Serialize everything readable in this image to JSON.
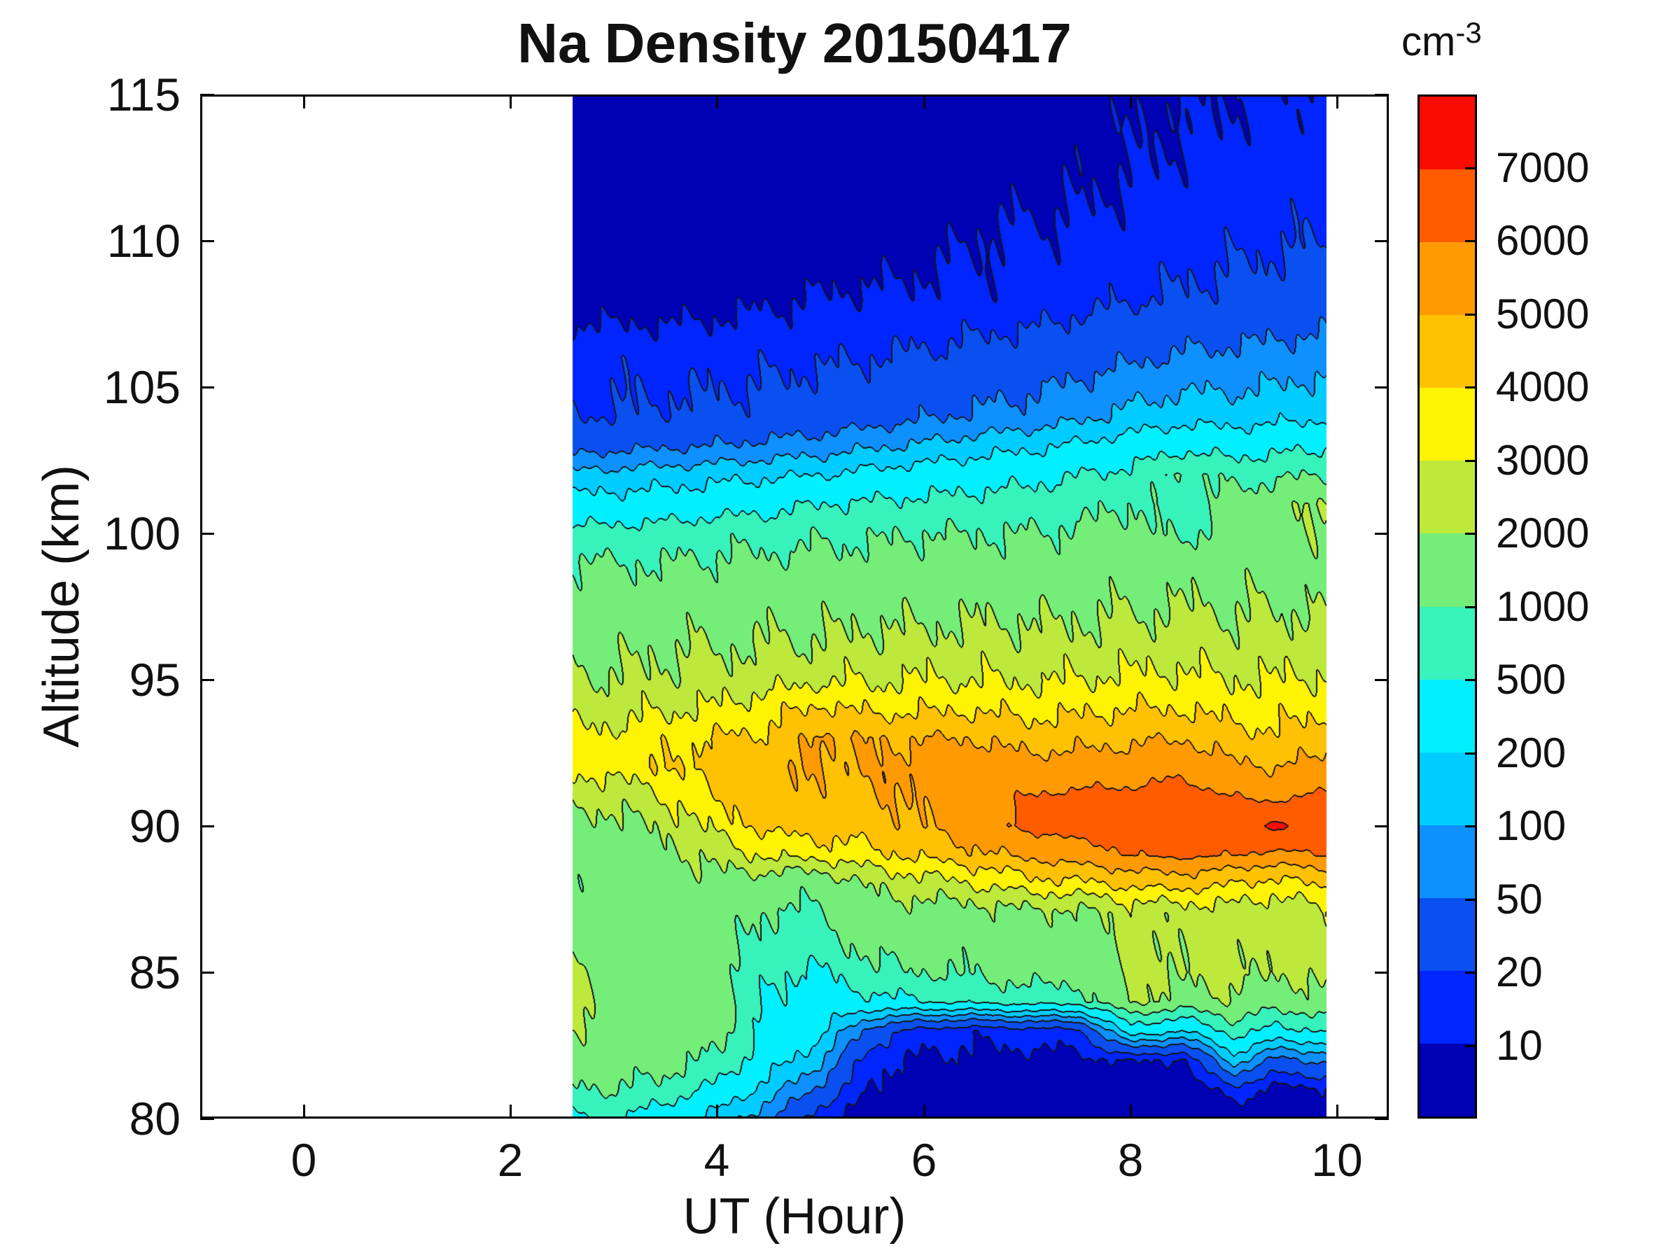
{
  "title": "Na Density 20150417",
  "xlabel": "UT (Hour)",
  "ylabel": "Altitude (km)",
  "axes": {
    "xlim": [
      -1,
      10.5
    ],
    "ylim": [
      80,
      115
    ],
    "xticks": [
      0,
      2,
      4,
      6,
      8,
      10
    ],
    "yticks": [
      80,
      85,
      90,
      95,
      100,
      105,
      110,
      115
    ]
  },
  "colorbar": {
    "unit_base": "cm",
    "unit_exp": "-3",
    "tick_labels": [
      10,
      20,
      50,
      100,
      200,
      500,
      1000,
      2000,
      3000,
      4000,
      5000,
      6000,
      7000
    ]
  },
  "chart_data": {
    "type": "filled_contour",
    "title": "Na Density 20150417",
    "xlabel": "UT (Hour)",
    "ylabel": "Altitude (km)",
    "z_units": "cm^-3",
    "x_data_range": [
      2.6,
      9.9
    ],
    "levels": [
      10,
      20,
      50,
      100,
      200,
      500,
      1000,
      2000,
      3000,
      4000,
      5000,
      6000,
      7000
    ],
    "band_colors": [
      "#0000B4",
      "#0025FF",
      "#0A50F0",
      "#0E90FF",
      "#00CCFF",
      "#00F0FF",
      "#38F2BC",
      "#74EE79",
      "#BCE93C",
      "#FDF303",
      "#FFC103",
      "#FF9A03",
      "#FF5C00",
      "#FA0C00"
    ],
    "contour_line_color": "#141414",
    "x": [
      2.6,
      3.0,
      3.5,
      4.0,
      4.5,
      5.0,
      5.5,
      6.0,
      6.5,
      7.0,
      7.5,
      8.0,
      8.5,
      9.0,
      9.4,
      9.9
    ],
    "y": [
      80,
      81,
      82,
      83,
      84,
      85,
      86,
      87,
      88,
      89,
      90,
      91,
      92,
      93,
      94,
      95,
      96,
      97,
      98,
      99,
      100,
      101,
      102,
      103,
      104,
      106,
      108,
      110,
      112,
      115
    ],
    "values_order": "rows follow y (altitude ascending), columns follow x (UT ascending), units cm^-3",
    "values": [
      [
        480,
        550,
        300,
        150,
        60,
        12,
        6,
        4.5,
        4,
        3.5,
        3.5,
        3.5,
        4,
        6,
        5,
        5
      ],
      [
        950,
        1000,
        800,
        400,
        150,
        40,
        9,
        6.5,
        6,
        5.5,
        5.5,
        5,
        5.5,
        15,
        8,
        9
      ],
      [
        1400,
        1500,
        1300,
        900,
        300,
        120,
        12,
        9,
        8.5,
        8,
        8,
        11,
        9,
        150,
        40,
        60
      ],
      [
        2100,
        1400,
        1500,
        1300,
        420,
        250,
        35,
        14,
        12,
        14,
        16,
        350,
        200,
        700,
        400,
        500
      ],
      [
        2600,
        1300,
        1400,
        1400,
        460,
        350,
        400,
        500,
        600,
        700,
        700,
        2200,
        1600,
        1900,
        1400,
        1800
      ],
      [
        2200,
        1300,
        1400,
        1400,
        550,
        450,
        900,
        1000,
        1100,
        1300,
        1300,
        2100,
        2200,
        2400,
        2000,
        2400
      ],
      [
        1500,
        1400,
        1400,
        1400,
        800,
        700,
        1300,
        1300,
        1300,
        1400,
        1500,
        2200,
        2300,
        2500,
        2200,
        2600
      ],
      [
        1300,
        1350,
        1400,
        1500,
        950,
        900,
        1700,
        1500,
        1600,
        1800,
        1800,
        2400,
        2400,
        2600,
        2200,
        2800
      ],
      [
        1250,
        1300,
        1500,
        1700,
        1400,
        1300,
        2200,
        2600,
        3000,
        3600,
        3800,
        4200,
        4400,
        4000,
        3600,
        4200
      ],
      [
        1300,
        1400,
        1700,
        2400,
        3200,
        3400,
        3800,
        4200,
        4800,
        5200,
        5600,
        6000,
        6200,
        6000,
        5800,
        6000
      ],
      [
        1600,
        1700,
        2200,
        3400,
        4300,
        4500,
        4500,
        5000,
        5600,
        6200,
        6400,
        6400,
        6500,
        6400,
        7300,
        6400
      ],
      [
        2300,
        2400,
        3000,
        4100,
        4600,
        4800,
        4800,
        5200,
        5800,
        6000,
        6200,
        6200,
        6400,
        6000,
        5800,
        6200
      ],
      [
        3300,
        3400,
        3900,
        4400,
        4800,
        5000,
        5000,
        5400,
        5600,
        5400,
        5500,
        5600,
        5800,
        5200,
        5000,
        5400
      ],
      [
        3200,
        3300,
        3700,
        4100,
        4200,
        5200,
        4900,
        5000,
        5000,
        4600,
        4700,
        4800,
        5000,
        4400,
        4200,
        4600
      ],
      [
        2600,
        2700,
        2900,
        3100,
        3600,
        4200,
        3800,
        3900,
        3900,
        3700,
        3800,
        4000,
        4000,
        3600,
        3600,
        3800
      ],
      [
        2100,
        2100,
        2200,
        2400,
        2600,
        2900,
        2900,
        3000,
        3000,
        2900,
        3000,
        3200,
        3200,
        3000,
        3000,
        3100
      ],
      [
        1800,
        1800,
        1900,
        2000,
        2100,
        2200,
        2300,
        2400,
        2400,
        2400,
        2400,
        2600,
        2600,
        2500,
        2500,
        2600
      ],
      [
        1500,
        1500,
        1600,
        1700,
        1800,
        1800,
        1900,
        1900,
        2000,
        2000,
        2000,
        2100,
        2200,
        2100,
        2100,
        2200
      ],
      [
        1300,
        1300,
        1300,
        1400,
        1400,
        1500,
        1500,
        1600,
        1600,
        1600,
        1700,
        1700,
        1800,
        1800,
        1800,
        1800
      ],
      [
        1050,
        1000,
        1000,
        1100,
        1100,
        1200,
        1200,
        1300,
        1300,
        1300,
        1400,
        1400,
        1500,
        1500,
        1600,
        1600
      ],
      [
        650,
        650,
        700,
        800,
        800,
        900,
        900,
        1000,
        1000,
        1000,
        1100,
        1300,
        800,
        1500,
        1700,
        1800
      ],
      [
        250,
        280,
        300,
        350,
        400,
        500,
        550,
        600,
        650,
        700,
        800,
        1000,
        650,
        1300,
        1500,
        2100
      ],
      [
        120,
        130,
        140,
        160,
        180,
        200,
        250,
        300,
        350,
        400,
        500,
        600,
        1100,
        800,
        900,
        1000
      ],
      [
        35,
        40,
        45,
        50,
        60,
        70,
        90,
        110,
        140,
        170,
        220,
        300,
        400,
        350,
        400,
        450
      ],
      [
        20,
        20,
        22,
        24,
        26,
        30,
        35,
        45,
        55,
        65,
        85,
        120,
        150,
        145,
        160,
        180
      ],
      [
        16,
        16,
        16,
        16,
        17,
        18,
        20,
        22,
        26,
        30,
        36,
        45,
        55,
        60,
        65,
        75
      ],
      [
        7,
        7,
        7,
        8,
        9,
        10.5,
        11,
        12,
        12,
        13,
        16,
        19,
        22,
        25,
        27,
        30
      ],
      [
        3,
        3,
        3,
        3.2,
        3.5,
        6,
        7,
        8,
        10.5,
        11,
        12,
        13,
        15,
        17,
        18,
        20
      ],
      [
        2.5,
        2.5,
        2.5,
        2.6,
        2.8,
        3,
        3.5,
        5,
        7,
        8.5,
        9,
        10.5,
        12,
        13,
        14,
        15
      ],
      [
        2,
        2,
        2,
        2,
        2.2,
        2.5,
        2.8,
        3.5,
        4.5,
        6.5,
        7.5,
        8.5,
        9.5,
        10.5,
        11,
        12
      ]
    ],
    "background": "#FFFFFF"
  }
}
